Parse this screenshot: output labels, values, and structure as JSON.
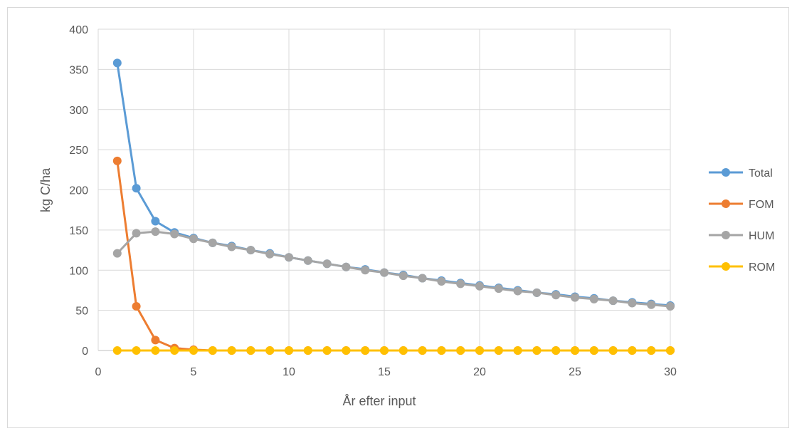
{
  "chart_data": {
    "type": "line",
    "xlabel": "År efter  input",
    "ylabel": "kg C/ha",
    "xlim": [
      0,
      30
    ],
    "ylim": [
      0,
      400
    ],
    "x_ticks": [
      0,
      5,
      10,
      15,
      20,
      25,
      30
    ],
    "y_ticks": [
      0,
      50,
      100,
      150,
      200,
      250,
      300,
      350,
      400
    ],
    "grid": true,
    "legend_position": "right",
    "x": [
      1,
      2,
      3,
      4,
      5,
      6,
      7,
      8,
      9,
      10,
      11,
      12,
      13,
      14,
      15,
      16,
      17,
      18,
      19,
      20,
      21,
      22,
      23,
      24,
      25,
      26,
      27,
      28,
      29,
      30
    ],
    "series": [
      {
        "name": "Total",
        "color": "#5b9bd5",
        "values": [
          358,
          202,
          161,
          147,
          140,
          134,
          130,
          125,
          121,
          116,
          112,
          108,
          104,
          101,
          97,
          94,
          90,
          87,
          84,
          81,
          78,
          75,
          72,
          70,
          67,
          65,
          62,
          60,
          58,
          56
        ]
      },
      {
        "name": "FOM",
        "color": "#ed7d31",
        "values": [
          236,
          55,
          13,
          3,
          1,
          0,
          0,
          0,
          0,
          0,
          0,
          0,
          0,
          0,
          0,
          0,
          0,
          0,
          0,
          0,
          0,
          0,
          0,
          0,
          0,
          0,
          0,
          0,
          0,
          0
        ]
      },
      {
        "name": "HUM",
        "color": "#a5a5a5",
        "values": [
          121,
          146,
          148,
          145,
          139,
          134,
          129,
          125,
          120,
          116,
          112,
          108,
          104,
          100,
          97,
          93,
          90,
          86,
          83,
          80,
          77,
          74,
          72,
          69,
          66,
          64,
          62,
          59,
          57,
          55
        ]
      },
      {
        "name": "ROM",
        "color": "#ffc000",
        "values": [
          0,
          0,
          0,
          0,
          0,
          0,
          0,
          0,
          0,
          0,
          0,
          0,
          0,
          0,
          0,
          0,
          0,
          0,
          0,
          0,
          0,
          0,
          0,
          0,
          0,
          0,
          0,
          0,
          0,
          0
        ]
      }
    ]
  }
}
